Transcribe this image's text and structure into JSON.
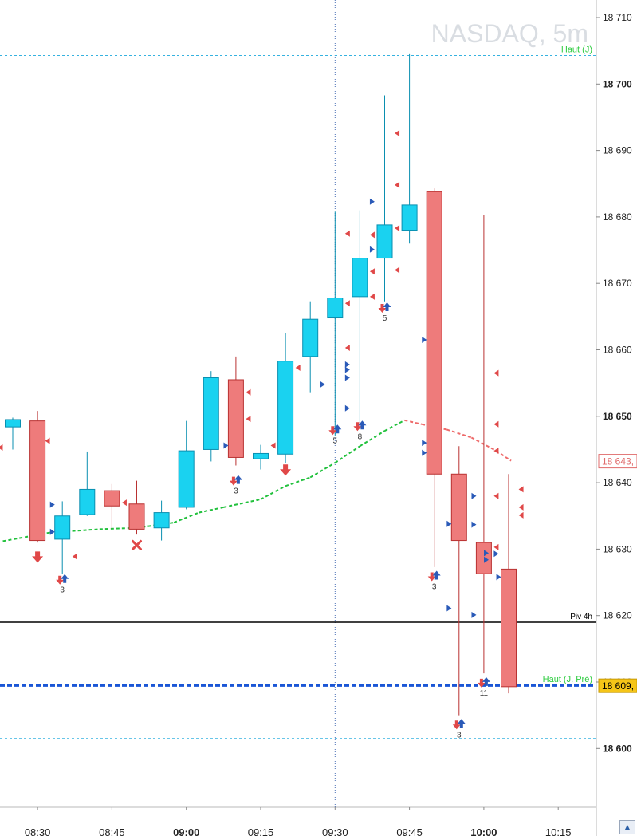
{
  "chart_data": {
    "type": "candlestick",
    "title": "NASDAQ, 5m",
    "ylim": [
      18590,
      18712
    ],
    "y_ticks": [
      {
        "value": 18600,
        "label": "18 600",
        "bold": true
      },
      {
        "value": 18610,
        "label": "18 610",
        "bold": false
      },
      {
        "value": 18620,
        "label": "18 620",
        "bold": false
      },
      {
        "value": 18630,
        "label": "18 630",
        "bold": false
      },
      {
        "value": 18640,
        "label": "18 640",
        "bold": false
      },
      {
        "value": 18650,
        "label": "18 650",
        "bold": true
      },
      {
        "value": 18660,
        "label": "18 660",
        "bold": false
      },
      {
        "value": 18670,
        "label": "18 670",
        "bold": false
      },
      {
        "value": 18680,
        "label": "18 680",
        "bold": false
      },
      {
        "value": 18690,
        "label": "18 690",
        "bold": false
      },
      {
        "value": 18700,
        "label": "18 700",
        "bold": true
      },
      {
        "value": 18710,
        "label": "18 710",
        "bold": false
      }
    ],
    "x_ticks": [
      {
        "bar": 1,
        "label": "08:30",
        "bold": false
      },
      {
        "bar": 4,
        "label": "08:45",
        "bold": false
      },
      {
        "bar": 7,
        "label": "09:00",
        "bold": true
      },
      {
        "bar": 10,
        "label": "09:15",
        "bold": false
      },
      {
        "bar": 13,
        "label": "09:30",
        "bold": false
      },
      {
        "bar": 16,
        "label": "09:45",
        "bold": false
      },
      {
        "bar": 19,
        "label": "10:00",
        "bold": true
      },
      {
        "bar": 22,
        "label": "10:15",
        "bold": false
      }
    ],
    "candles": [
      {
        "bar": 0,
        "open": 18648.4,
        "high": 18649.8,
        "low": 18645.0,
        "close": 18649.5
      },
      {
        "bar": 1,
        "open": 18649.3,
        "high": 18650.8,
        "low": 18631.0,
        "close": 18631.3
      },
      {
        "bar": 2,
        "open": 18631.5,
        "high": 18637.2,
        "low": 18626.3,
        "close": 18635.0
      },
      {
        "bar": 3,
        "open": 18635.2,
        "high": 18644.7,
        "low": 18635.0,
        "close": 18639.0
      },
      {
        "bar": 4,
        "open": 18638.8,
        "high": 18639.8,
        "low": 18633.0,
        "close": 18636.5
      },
      {
        "bar": 5,
        "open": 18636.8,
        "high": 18640.3,
        "low": 18632.2,
        "close": 18633.0
      },
      {
        "bar": 6,
        "open": 18633.2,
        "high": 18637.3,
        "low": 18631.3,
        "close": 18635.5
      },
      {
        "bar": 7,
        "open": 18636.3,
        "high": 18649.3,
        "low": 18636.0,
        "close": 18644.8
      },
      {
        "bar": 8,
        "open": 18645.0,
        "high": 18656.8,
        "low": 18643.2,
        "close": 18655.8
      },
      {
        "bar": 9,
        "open": 18655.5,
        "high": 18659.0,
        "low": 18642.6,
        "close": 18643.8
      },
      {
        "bar": 10,
        "open": 18643.6,
        "high": 18645.7,
        "low": 18642.0,
        "close": 18644.4
      },
      {
        "bar": 11,
        "open": 18644.3,
        "high": 18662.5,
        "low": 18643.0,
        "close": 18658.3
      },
      {
        "bar": 12,
        "open": 18659.0,
        "high": 18667.3,
        "low": 18653.5,
        "close": 18664.6
      },
      {
        "bar": 13,
        "open": 18664.8,
        "high": 18680.8,
        "low": 18647.0,
        "close": 18667.8
      },
      {
        "bar": 14,
        "open": 18668.0,
        "high": 18681.0,
        "low": 18649.0,
        "close": 18673.8
      },
      {
        "bar": 15,
        "open": 18673.8,
        "high": 18698.3,
        "low": 18667.3,
        "close": 18678.8
      },
      {
        "bar": 16,
        "open": 18678.0,
        "high": 18704.5,
        "low": 18676.0,
        "close": 18681.8
      },
      {
        "bar": 17,
        "open": 18683.8,
        "high": 18684.3,
        "low": 18627.3,
        "close": 18641.3
      },
      {
        "bar": 18,
        "open": 18641.3,
        "high": 18645.5,
        "low": 18605.0,
        "close": 18631.3
      },
      {
        "bar": 19,
        "open": 18631.0,
        "high": 18680.3,
        "low": 18611.3,
        "close": 18626.3
      },
      {
        "bar": 20,
        "open": 18627.0,
        "high": 18641.3,
        "low": 18608.3,
        "close": 18609.3
      }
    ],
    "moving_average": [
      {
        "bar": -0.4,
        "value": 18631.2
      },
      {
        "bar": 1.5,
        "value": 18632.5
      },
      {
        "bar": 3.5,
        "value": 18633.0
      },
      {
        "bar": 5.0,
        "value": 18633.2
      },
      {
        "bar": 6.5,
        "value": 18634.0
      },
      {
        "bar": 7.5,
        "value": 18635.5
      },
      {
        "bar": 8.5,
        "value": 18636.3
      },
      {
        "bar": 10.0,
        "value": 18637.5
      },
      {
        "bar": 11.0,
        "value": 18639.5
      },
      {
        "bar": 12.0,
        "value": 18640.8
      },
      {
        "bar": 13.0,
        "value": 18643.0
      },
      {
        "bar": 14.0,
        "value": 18645.5
      },
      {
        "bar": 15.0,
        "value": 18647.8
      },
      {
        "bar": 15.8,
        "value": 18649.4
      },
      {
        "bar": 16.5,
        "value": 18648.8
      },
      {
        "bar": 17.5,
        "value": 18648.0
      },
      {
        "bar": 18.5,
        "value": 18646.8
      },
      {
        "bar": 19.5,
        "value": 18644.8
      },
      {
        "bar": 20.1,
        "value": 18643.3
      }
    ],
    "levels": [
      {
        "label": "Haut (J)",
        "value": 18704.3,
        "color": "#35b2e0",
        "label_color": "#2ecc40",
        "style": "thin-dashed"
      },
      {
        "label": "Piv 4h",
        "value": 18619.0,
        "color": "#000000",
        "label_color": "#000000",
        "style": "solid"
      },
      {
        "label": "Haut (J. Pré)",
        "value": 18609.5,
        "color": "#1a56d6",
        "label_color": "#2ecc40",
        "style": "thick-dashed"
      },
      {
        "label": "",
        "value": 18601.5,
        "color": "#35b2e0",
        "label_color": "#35b2e0",
        "style": "thin-dashed"
      }
    ],
    "price_tags": [
      {
        "text": "18 643,",
        "value": 18643.3,
        "bg": "#ffffff",
        "fg": "#e06b6b",
        "border": "#e06b6b"
      },
      {
        "text": "18 609,",
        "value": 18609.5,
        "bg": "#f5c518",
        "fg": "#000000",
        "border": "#c99a00"
      }
    ],
    "signals": [
      {
        "bar": 1,
        "value": 18628.8,
        "kind": "down-arrow",
        "label": ""
      },
      {
        "bar": 2,
        "value": 18625.4,
        "kind": "pair",
        "label": "3"
      },
      {
        "bar": 5,
        "value": 18630.6,
        "kind": "x-mark",
        "label": ""
      },
      {
        "bar": 9,
        "value": 18640.3,
        "kind": "pair",
        "label": "3"
      },
      {
        "bar": 11,
        "value": 18641.9,
        "kind": "down-arrow",
        "label": ""
      },
      {
        "bar": 13,
        "value": 18647.9,
        "kind": "pair",
        "label": "5"
      },
      {
        "bar": 14,
        "value": 18648.5,
        "kind": "pair",
        "label": "8"
      },
      {
        "bar": 15,
        "value": 18666.3,
        "kind": "pair",
        "label": "5"
      },
      {
        "bar": 17,
        "value": 18625.9,
        "kind": "pair",
        "label": "3"
      },
      {
        "bar": 18,
        "value": 18603.6,
        "kind": "pair",
        "label": "3"
      },
      {
        "bar": 19,
        "value": 18609.9,
        "kind": "pair",
        "label": "11"
      }
    ],
    "markers": [
      {
        "bar": -0.5,
        "value": 18645.3,
        "side": "left",
        "color": "#e04848"
      },
      {
        "bar": 1.4,
        "value": 18646.3,
        "side": "left",
        "color": "#e04848"
      },
      {
        "bar": 1.6,
        "value": 18636.7,
        "side": "right",
        "color": "#2a5ab8"
      },
      {
        "bar": 1.6,
        "value": 18632.6,
        "side": "right",
        "color": "#2a5ab8"
      },
      {
        "bar": 2.5,
        "value": 18628.9,
        "side": "left",
        "color": "#e04848"
      },
      {
        "bar": 4.5,
        "value": 18637.0,
        "side": "left",
        "color": "#e04848"
      },
      {
        "bar": 8.6,
        "value": 18645.6,
        "side": "right",
        "color": "#2a5ab8"
      },
      {
        "bar": 9.5,
        "value": 18653.6,
        "side": "left",
        "color": "#e04848"
      },
      {
        "bar": 9.5,
        "value": 18649.6,
        "side": "left",
        "color": "#e04848"
      },
      {
        "bar": 10.5,
        "value": 18645.6,
        "side": "left",
        "color": "#e04848"
      },
      {
        "bar": 11.5,
        "value": 18657.3,
        "side": "left",
        "color": "#e04848"
      },
      {
        "bar": 12.5,
        "value": 18654.8,
        "side": "right",
        "color": "#2a5ab8"
      },
      {
        "bar": 13.5,
        "value": 18667.0,
        "side": "left",
        "color": "#e04848"
      },
      {
        "bar": 13.5,
        "value": 18660.3,
        "side": "left",
        "color": "#e04848"
      },
      {
        "bar": 13.5,
        "value": 18657.8,
        "side": "right",
        "color": "#2a5ab8"
      },
      {
        "bar": 13.5,
        "value": 18657.0,
        "side": "right",
        "color": "#2a5ab8"
      },
      {
        "bar": 13.5,
        "value": 18655.8,
        "side": "right",
        "color": "#2a5ab8"
      },
      {
        "bar": 13.5,
        "value": 18651.2,
        "side": "right",
        "color": "#2a5ab8"
      },
      {
        "bar": 13.5,
        "value": 18677.5,
        "side": "left",
        "color": "#e04848"
      },
      {
        "bar": 14.5,
        "value": 18677.3,
        "side": "left",
        "color": "#e04848"
      },
      {
        "bar": 14.5,
        "value": 18671.8,
        "side": "left",
        "color": "#e04848"
      },
      {
        "bar": 14.5,
        "value": 18668.0,
        "side": "left",
        "color": "#e04848"
      },
      {
        "bar": 14.5,
        "value": 18682.3,
        "side": "right",
        "color": "#2a5ab8"
      },
      {
        "bar": 14.5,
        "value": 18675.1,
        "side": "right",
        "color": "#2a5ab8"
      },
      {
        "bar": 15.5,
        "value": 18692.6,
        "side": "left",
        "color": "#e04848"
      },
      {
        "bar": 15.5,
        "value": 18684.8,
        "side": "left",
        "color": "#e04848"
      },
      {
        "bar": 15.5,
        "value": 18678.3,
        "side": "left",
        "color": "#e04848"
      },
      {
        "bar": 15.5,
        "value": 18672.0,
        "side": "left",
        "color": "#e04848"
      },
      {
        "bar": 16.6,
        "value": 18661.5,
        "side": "right",
        "color": "#2a5ab8"
      },
      {
        "bar": 16.6,
        "value": 18646.0,
        "side": "right",
        "color": "#2a5ab8"
      },
      {
        "bar": 16.6,
        "value": 18644.5,
        "side": "right",
        "color": "#2a5ab8"
      },
      {
        "bar": 17.6,
        "value": 18633.8,
        "side": "right",
        "color": "#2a5ab8"
      },
      {
        "bar": 17.6,
        "value": 18621.1,
        "side": "right",
        "color": "#2a5ab8"
      },
      {
        "bar": 18.6,
        "value": 18638.0,
        "side": "right",
        "color": "#2a5ab8"
      },
      {
        "bar": 18.6,
        "value": 18633.7,
        "side": "right",
        "color": "#2a5ab8"
      },
      {
        "bar": 18.6,
        "value": 18620.1,
        "side": "right",
        "color": "#2a5ab8"
      },
      {
        "bar": 19.1,
        "value": 18629.4,
        "side": "right",
        "color": "#2a5ab8"
      },
      {
        "bar": 19.1,
        "value": 18628.4,
        "side": "right",
        "color": "#2a5ab8"
      },
      {
        "bar": 19.5,
        "value": 18656.5,
        "side": "left",
        "color": "#e04848"
      },
      {
        "bar": 19.5,
        "value": 18648.8,
        "side": "left",
        "color": "#e04848"
      },
      {
        "bar": 19.5,
        "value": 18644.8,
        "side": "left",
        "color": "#e04848"
      },
      {
        "bar": 19.5,
        "value": 18638.0,
        "side": "left",
        "color": "#e04848"
      },
      {
        "bar": 19.5,
        "value": 18630.3,
        "side": "left",
        "color": "#e04848"
      },
      {
        "bar": 19.5,
        "value": 18629.3,
        "side": "right",
        "color": "#2a5ab8"
      },
      {
        "bar": 19.6,
        "value": 18625.8,
        "side": "right",
        "color": "#2a5ab8"
      },
      {
        "bar": 20.5,
        "value": 18639.0,
        "side": "left",
        "color": "#e04848"
      },
      {
        "bar": 20.5,
        "value": 18636.3,
        "side": "left",
        "color": "#e04848"
      },
      {
        "bar": 20.5,
        "value": 18635.1,
        "side": "left",
        "color": "#e04848"
      }
    ],
    "colors": {
      "bull_fill": "#1ad2f0",
      "bull_border": "#0a8fb0",
      "bear_fill": "#ee7b7b",
      "bear_border": "#b93232",
      "ma_up": "#22c13d",
      "ma_down": "#ee6b6b",
      "grid_vline": "#4a6fb5"
    },
    "cursor_bar": 13,
    "legend": "none",
    "grid": false
  },
  "ui": {
    "corner_button_icon": "expand-arrow-icon"
  }
}
